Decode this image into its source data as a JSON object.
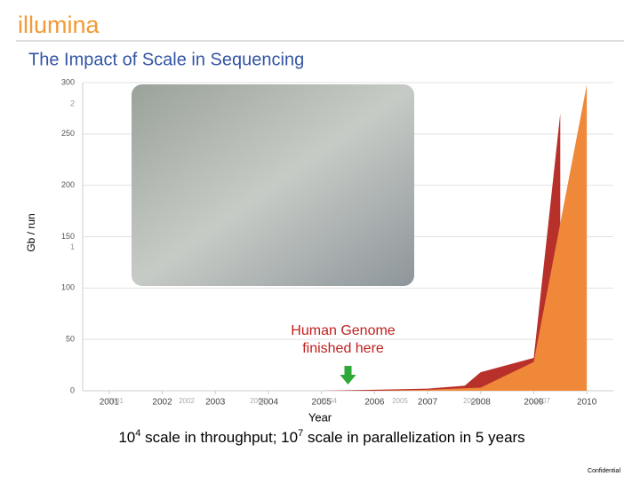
{
  "logo": "illumina",
  "chart_data": {
    "type": "area",
    "title": "The Impact of Scale in Sequencing",
    "ylabel": "Gb / run",
    "xlabel": "Year",
    "annotation": "Human Genome finished here",
    "annotation_x": 2005.5,
    "xlim": [
      2000.5,
      2010.5
    ],
    "xticks": [
      2001,
      2002,
      2003,
      2004,
      2005,
      2006,
      2007,
      2008,
      2009,
      2010
    ],
    "x2labels": [
      "2001",
      "2002",
      "2003",
      "2004",
      "2005",
      "2006",
      "2007"
    ],
    "ylim": [
      0,
      300
    ],
    "yticks": [
      0,
      50,
      100,
      150,
      200,
      250,
      300
    ],
    "y2lim": [
      0,
      2.15
    ],
    "y2ticks": [
      1,
      2
    ],
    "grid": true,
    "series": [
      {
        "name": "dark",
        "color": "#b8302a",
        "x": [
          2001,
          2005,
          2006,
          2007,
          2007.7,
          2008,
          2009,
          2009.5,
          2009.5
        ],
        "values": [
          0,
          0,
          1,
          2,
          5,
          18,
          32,
          270,
          0
        ]
      },
      {
        "name": "light",
        "color": "#f0883a",
        "x": [
          2001,
          2006,
          2007,
          2008,
          2009,
          2010,
          2010
        ],
        "values": [
          0,
          0,
          1,
          3,
          28,
          298,
          0
        ]
      }
    ]
  },
  "footer": [
    "10",
    "4",
    " scale in throughput; 10",
    "7",
    " scale in parallelization in 5 years"
  ],
  "confidential": "Confidential"
}
